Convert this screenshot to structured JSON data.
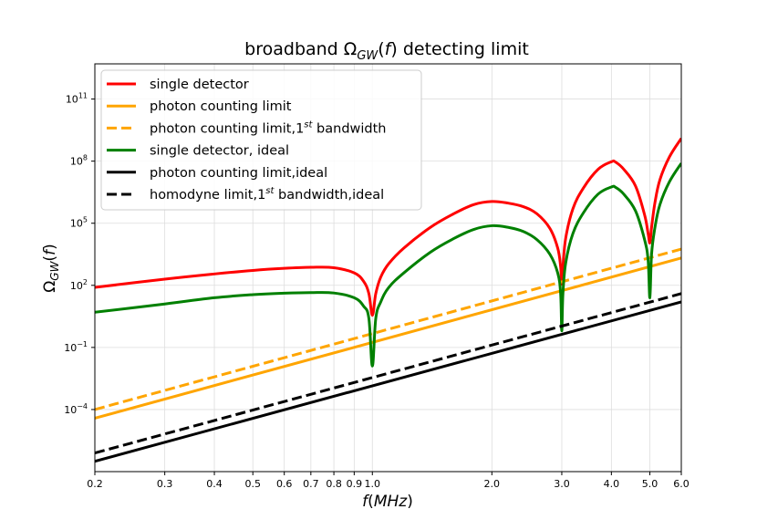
{
  "chart_data": {
    "type": "line",
    "title": "broadband Ω_GW(f) detecting limit",
    "title_parts": {
      "prefix": "broadband Ω",
      "sub": "GW",
      "mid": "(",
      "var": "f",
      "suffix": ") detecting limit"
    },
    "xlabel": "f(MHz)",
    "xlabel_parts": {
      "var": "f",
      "rest": "(",
      "unit": "MHz",
      "close": ")"
    },
    "ylabel": "Ω_GW(f)",
    "ylabel_parts": {
      "sym": "Ω",
      "sub": "GW",
      "open": "(",
      "var": "f",
      "close": ")"
    },
    "xscale": "log",
    "yscale": "log",
    "xlim": [
      0.2,
      6.0
    ],
    "ylim_exp": [
      -7,
      12.7
    ],
    "grid": true,
    "legend_location": "top-left",
    "x_ticks": [
      {
        "value": 0.2,
        "label": "0.2"
      },
      {
        "value": 0.3,
        "label": "0.3"
      },
      {
        "value": 0.4,
        "label": "0.4"
      },
      {
        "value": 0.5,
        "label": "0.5"
      },
      {
        "value": 0.6,
        "label": "0.6"
      },
      {
        "value": 0.7,
        "label": "0.7"
      },
      {
        "value": 0.8,
        "label": "0.8"
      },
      {
        "value": 0.9,
        "label": "0.9"
      },
      {
        "value": 1.0,
        "label": "1.0"
      },
      {
        "value": 2.0,
        "label": "2.0"
      },
      {
        "value": 3.0,
        "label": "3.0"
      },
      {
        "value": 4.0,
        "label": "4.0"
      },
      {
        "value": 5.0,
        "label": "5.0"
      },
      {
        "value": 6.0,
        "label": "6.0"
      }
    ],
    "y_ticks": [
      {
        "exp": -4,
        "base": "10",
        "sup": "−4"
      },
      {
        "exp": -1,
        "base": "10",
        "sup": "−1"
      },
      {
        "exp": 2,
        "base": "10",
        "sup": "2"
      },
      {
        "exp": 5,
        "base": "10",
        "sup": "5"
      },
      {
        "exp": 8,
        "base": "10",
        "sup": "8"
      },
      {
        "exp": 11,
        "base": "10",
        "sup": "11"
      }
    ],
    "series": [
      {
        "name": "single detector",
        "legend_parts": {
          "text": "single detector",
          "sup": "",
          "after": ""
        },
        "color": "#ff0000",
        "dash": "solid",
        "kind": "curve",
        "x": [
          0.2,
          0.3,
          0.4,
          0.5,
          0.6,
          0.7,
          0.8,
          0.9,
          0.95,
          0.98,
          1.0,
          1.02,
          1.05,
          1.1,
          1.2,
          1.4,
          1.6,
          1.8,
          2.0,
          2.2,
          2.4,
          2.6,
          2.8,
          2.93,
          2.98,
          3.0,
          3.02,
          3.07,
          3.2,
          3.4,
          3.7,
          4.0,
          4.1,
          4.3,
          4.6,
          4.85,
          4.95,
          5.0,
          5.05,
          5.15,
          5.3,
          5.6,
          6.0
        ],
        "y_exp": [
          1.9,
          2.3,
          2.55,
          2.72,
          2.82,
          2.87,
          2.85,
          2.6,
          2.2,
          1.6,
          0.55,
          1.6,
          2.4,
          3.05,
          3.8,
          4.8,
          5.45,
          5.9,
          6.05,
          5.97,
          5.8,
          5.45,
          4.75,
          3.8,
          2.9,
          2.05,
          2.9,
          4.3,
          5.7,
          6.7,
          7.6,
          7.97,
          7.95,
          7.6,
          6.8,
          5.4,
          4.5,
          4.05,
          4.8,
          6.0,
          7.1,
          8.2,
          9.1
        ]
      },
      {
        "name": "photon counting limit",
        "legend_parts": {
          "text": "photon counting limit",
          "sup": "",
          "after": ""
        },
        "color": "#ffa500",
        "dash": "solid",
        "kind": "line",
        "x": [
          0.2,
          6.0
        ],
        "y_exp": [
          -4.42,
          3.32
        ]
      },
      {
        "name": "photon counting limit,1st bandwidth",
        "legend_parts": {
          "text": "photon counting limit,1",
          "sup": "st",
          "after": " bandwidth"
        },
        "color": "#ffa500",
        "dash": "dashed",
        "kind": "line",
        "x": [
          0.2,
          6.0
        ],
        "y_exp": [
          -4.0,
          3.75
        ]
      },
      {
        "name": "single detector, ideal",
        "legend_parts": {
          "text": "single detector, ideal",
          "sup": "",
          "after": ""
        },
        "color": "#008000",
        "dash": "solid",
        "kind": "curve",
        "x": [
          0.2,
          0.3,
          0.4,
          0.5,
          0.6,
          0.7,
          0.8,
          0.9,
          0.95,
          0.98,
          1.0,
          1.02,
          1.05,
          1.1,
          1.2,
          1.4,
          1.6,
          1.8,
          2.0,
          2.2,
          2.4,
          2.6,
          2.8,
          2.93,
          2.98,
          3.0,
          3.02,
          3.07,
          3.2,
          3.4,
          3.7,
          4.0,
          4.1,
          4.3,
          4.6,
          4.85,
          4.95,
          5.0,
          5.05,
          5.15,
          5.3,
          5.6,
          6.0
        ],
        "y_exp": [
          0.7,
          1.1,
          1.4,
          1.55,
          1.62,
          1.65,
          1.63,
          1.4,
          1.0,
          0.4,
          -1.9,
          0.4,
          1.2,
          1.9,
          2.6,
          3.6,
          4.25,
          4.7,
          4.88,
          4.8,
          4.6,
          4.2,
          3.5,
          2.6,
          1.6,
          -0.2,
          1.6,
          3.1,
          4.5,
          5.5,
          6.4,
          6.75,
          6.73,
          6.4,
          5.6,
          4.2,
          3.2,
          1.4,
          3.5,
          4.8,
          5.9,
          7.0,
          7.9
        ]
      },
      {
        "name": "photon counting limit,ideal",
        "legend_parts": {
          "text": "photon counting limit,ideal",
          "sup": "",
          "after": ""
        },
        "color": "#000000",
        "dash": "solid",
        "kind": "line",
        "x": [
          0.2,
          6.0
        ],
        "y_exp": [
          -6.5,
          1.2
        ]
      },
      {
        "name": "homodyne limit,1st bandwidth,ideal",
        "legend_parts": {
          "text": "homodyne limit,1",
          "sup": "st",
          "after": " bandwidth,ideal"
        },
        "color": "#000000",
        "dash": "dashed",
        "kind": "line",
        "x": [
          0.2,
          6.0
        ],
        "y_exp": [
          -6.1,
          1.6
        ]
      }
    ]
  }
}
